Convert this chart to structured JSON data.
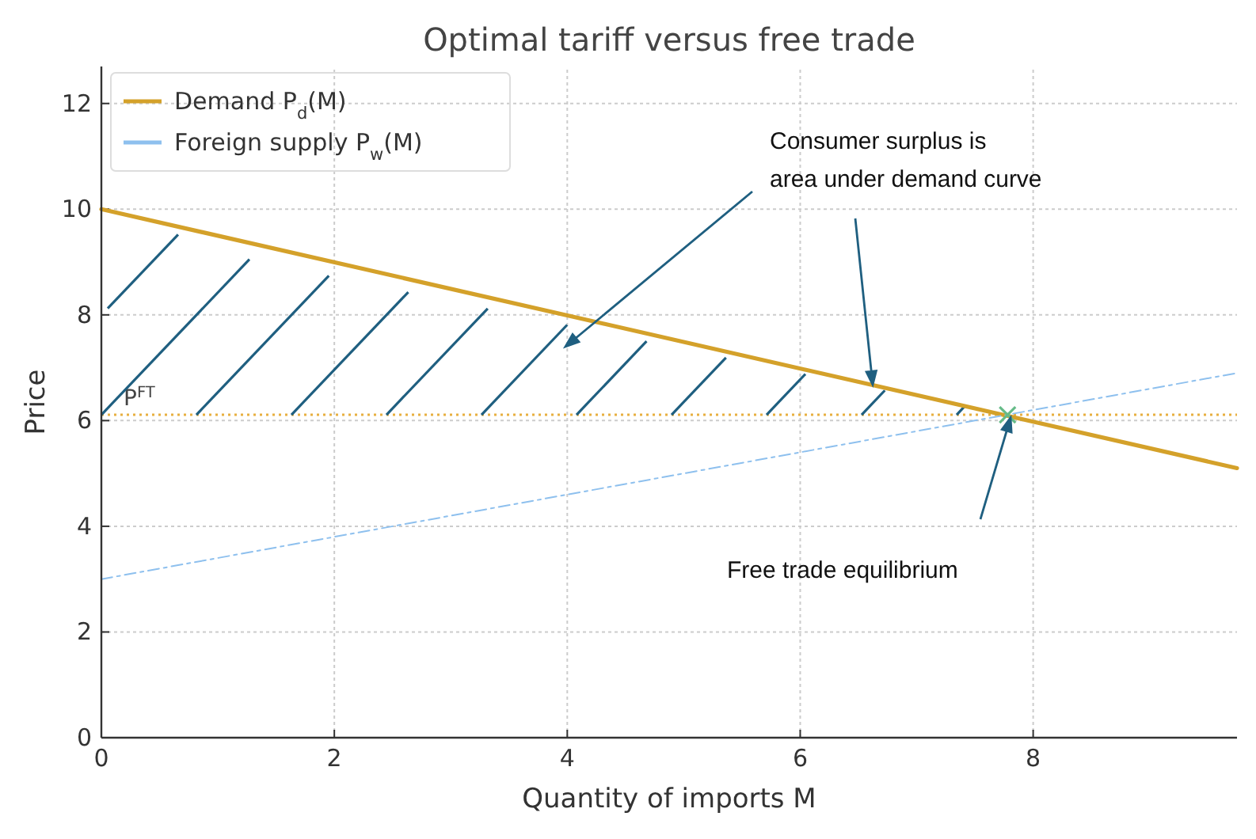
{
  "chart_data": {
    "type": "line",
    "title": "Optimal tariff versus free trade",
    "xlabel": "Quantity of imports M",
    "ylabel": "Price",
    "xlim": [
      0,
      9.75
    ],
    "ylim": [
      0,
      12.7
    ],
    "xticks": [
      0,
      2,
      4,
      6,
      8
    ],
    "yticks": [
      0,
      2,
      4,
      6,
      8,
      10,
      12
    ],
    "grid": true,
    "legend": "top left",
    "series": [
      {
        "name": "Demand P$_{d}$(M)",
        "color": "#d4a12a",
        "x": [
          0,
          9.75
        ],
        "values": [
          10,
          5.1
        ],
        "line_style": "solid"
      },
      {
        "name": "Foreign supply P$_{w}$(M)",
        "color": "#8ec0ee",
        "x": [
          0,
          9.75
        ],
        "values": [
          3,
          6.9
        ],
        "line_style": "dashed"
      },
      {
        "type": "scatter",
        "color": "#66bb88",
        "x": [
          7.78
        ],
        "values": [
          6.11
        ],
        "marker": "cross"
      }
    ],
    "ref_lines": [
      {
        "axis": "y",
        "value": 6.11,
        "label": "P$^{FT}$",
        "color": "#e8b040",
        "line_style": "dotted"
      }
    ],
    "annotations": [
      "Consumer surplus is\narea under demand curve",
      "Free trade equilibrium"
    ]
  }
}
